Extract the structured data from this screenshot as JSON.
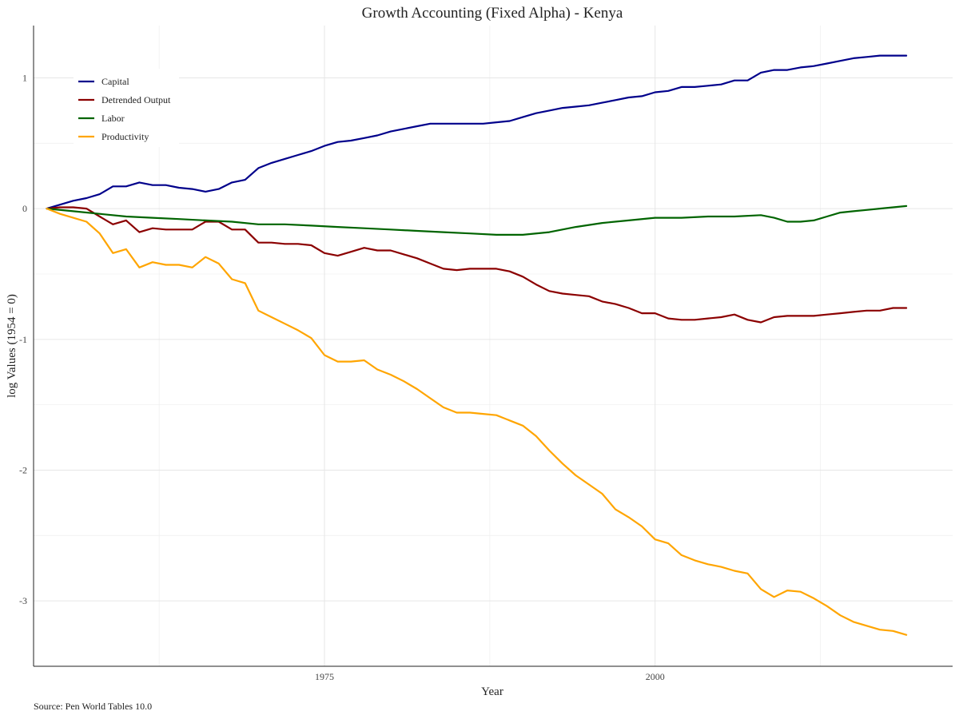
{
  "caption": "Source: Pen World Tables 10.0",
  "chart_data": {
    "type": "line",
    "title": "Growth Accounting (Fixed Alpha) - Kenya",
    "xlabel": "Year",
    "ylabel": "log Values (1954 = 0)",
    "xlim": [
      1953,
      2022.5
    ],
    "ylim": [
      -3.5,
      1.4
    ],
    "x_ticks": [
      1975,
      2000
    ],
    "y_ticks": [
      -3,
      -2,
      -1,
      0,
      1
    ],
    "grid": true,
    "legend_position": "top-left",
    "series": [
      {
        "name": "Capital",
        "color": "#00008b",
        "x": [
          1954,
          1955,
          1956,
          1957,
          1958,
          1959,
          1960,
          1961,
          1962,
          1963,
          1964,
          1965,
          1966,
          1967,
          1968,
          1969,
          1970,
          1971,
          1972,
          1973,
          1974,
          1975,
          1976,
          1977,
          1978,
          1979,
          1980,
          1981,
          1982,
          1983,
          1984,
          1985,
          1986,
          1987,
          1988,
          1989,
          1990,
          1991,
          1992,
          1993,
          1994,
          1995,
          1996,
          1997,
          1998,
          1999,
          2000,
          2001,
          2002,
          2003,
          2004,
          2005,
          2006,
          2007,
          2008,
          2009,
          2010,
          2011,
          2012,
          2013,
          2014,
          2015,
          2016,
          2017,
          2018,
          2019
        ],
        "values": [
          0,
          0.03,
          0.06,
          0.08,
          0.11,
          0.17,
          0.17,
          0.2,
          0.18,
          0.18,
          0.16,
          0.15,
          0.13,
          0.15,
          0.2,
          0.22,
          0.31,
          0.35,
          0.38,
          0.41,
          0.44,
          0.48,
          0.51,
          0.52,
          0.54,
          0.56,
          0.59,
          0.61,
          0.63,
          0.65,
          0.65,
          0.65,
          0.65,
          0.65,
          0.66,
          0.67,
          0.7,
          0.73,
          0.75,
          0.77,
          0.78,
          0.79,
          0.81,
          0.83,
          0.85,
          0.86,
          0.89,
          0.9,
          0.93,
          0.93,
          0.94,
          0.95,
          0.98,
          0.98,
          1.04,
          1.06,
          1.06,
          1.08,
          1.09,
          1.11,
          1.13,
          1.15,
          1.16,
          1.17,
          1.17,
          1.17
        ]
      },
      {
        "name": "Detrended Output",
        "color": "#8b0000",
        "x": [
          1954,
          1955,
          1956,
          1957,
          1958,
          1959,
          1960,
          1961,
          1962,
          1963,
          1964,
          1965,
          1966,
          1967,
          1968,
          1969,
          1970,
          1971,
          1972,
          1973,
          1974,
          1975,
          1976,
          1977,
          1978,
          1979,
          1980,
          1981,
          1982,
          1983,
          1984,
          1985,
          1986,
          1987,
          1988,
          1989,
          1990,
          1991,
          1992,
          1993,
          1994,
          1995,
          1996,
          1997,
          1998,
          1999,
          2000,
          2001,
          2002,
          2003,
          2004,
          2005,
          2006,
          2007,
          2008,
          2009,
          2010,
          2011,
          2012,
          2013,
          2014,
          2015,
          2016,
          2017,
          2018,
          2019
        ],
        "values": [
          0,
          0.01,
          0.01,
          0,
          -0.06,
          -0.12,
          -0.09,
          -0.18,
          -0.15,
          -0.16,
          -0.16,
          -0.16,
          -0.1,
          -0.1,
          -0.16,
          -0.16,
          -0.26,
          -0.26,
          -0.27,
          -0.27,
          -0.28,
          -0.34,
          -0.36,
          -0.33,
          -0.3,
          -0.32,
          -0.32,
          -0.35,
          -0.38,
          -0.42,
          -0.46,
          -0.47,
          -0.46,
          -0.46,
          -0.46,
          -0.48,
          -0.52,
          -0.58,
          -0.63,
          -0.65,
          -0.66,
          -0.67,
          -0.71,
          -0.73,
          -0.76,
          -0.8,
          -0.8,
          -0.84,
          -0.85,
          -0.85,
          -0.84,
          -0.83,
          -0.81,
          -0.85,
          -0.87,
          -0.83,
          -0.82,
          -0.82,
          -0.82,
          -0.81,
          -0.8,
          -0.79,
          -0.78,
          -0.78,
          -0.76,
          -0.76
        ]
      },
      {
        "name": "Labor",
        "color": "#006400",
        "x": [
          1954,
          1956,
          1958,
          1960,
          1962,
          1964,
          1966,
          1968,
          1970,
          1972,
          1974,
          1976,
          1978,
          1980,
          1982,
          1984,
          1986,
          1988,
          1990,
          1992,
          1994,
          1996,
          1998,
          2000,
          2002,
          2004,
          2006,
          2008,
          2009,
          2010,
          2011,
          2012,
          2013,
          2014,
          2015,
          2016,
          2017,
          2018,
          2019
        ],
        "values": [
          0,
          -0.02,
          -0.04,
          -0.06,
          -0.07,
          -0.08,
          -0.09,
          -0.1,
          -0.12,
          -0.12,
          -0.13,
          -0.14,
          -0.15,
          -0.16,
          -0.17,
          -0.18,
          -0.19,
          -0.2,
          -0.2,
          -0.18,
          -0.14,
          -0.11,
          -0.09,
          -0.07,
          -0.07,
          -0.06,
          -0.06,
          -0.05,
          -0.07,
          -0.1,
          -0.1,
          -0.09,
          -0.06,
          -0.03,
          -0.02,
          -0.01,
          0,
          0.01,
          0.02
        ]
      },
      {
        "name": "Productivity",
        "color": "#ffa500",
        "x": [
          1954,
          1955,
          1956,
          1957,
          1958,
          1959,
          1960,
          1961,
          1962,
          1963,
          1964,
          1965,
          1966,
          1967,
          1968,
          1969,
          1970,
          1971,
          1972,
          1973,
          1974,
          1975,
          1976,
          1977,
          1978,
          1979,
          1980,
          1981,
          1982,
          1983,
          1984,
          1985,
          1986,
          1987,
          1988,
          1989,
          1990,
          1991,
          1992,
          1993,
          1994,
          1995,
          1996,
          1997,
          1998,
          1999,
          2000,
          2001,
          2002,
          2003,
          2004,
          2005,
          2006,
          2007,
          2008,
          2009,
          2010,
          2011,
          2012,
          2013,
          2014,
          2015,
          2016,
          2017,
          2018,
          2019
        ],
        "values": [
          0,
          -0.04,
          -0.07,
          -0.1,
          -0.19,
          -0.34,
          -0.31,
          -0.45,
          -0.41,
          -0.43,
          -0.43,
          -0.45,
          -0.37,
          -0.42,
          -0.54,
          -0.57,
          -0.78,
          -0.83,
          -0.88,
          -0.93,
          -0.99,
          -1.12,
          -1.17,
          -1.17,
          -1.16,
          -1.23,
          -1.27,
          -1.32,
          -1.38,
          -1.45,
          -1.52,
          -1.56,
          -1.56,
          -1.57,
          -1.58,
          -1.62,
          -1.66,
          -1.74,
          -1.85,
          -1.95,
          -2.04,
          -2.11,
          -2.18,
          -2.3,
          -2.36,
          -2.43,
          -2.53,
          -2.56,
          -2.65,
          -2.69,
          -2.72,
          -2.74,
          -2.77,
          -2.79,
          -2.91,
          -2.97,
          -2.92,
          -2.93,
          -2.98,
          -3.04,
          -3.11,
          -3.16,
          -3.19,
          -3.22,
          -3.23,
          -3.26
        ]
      }
    ]
  }
}
